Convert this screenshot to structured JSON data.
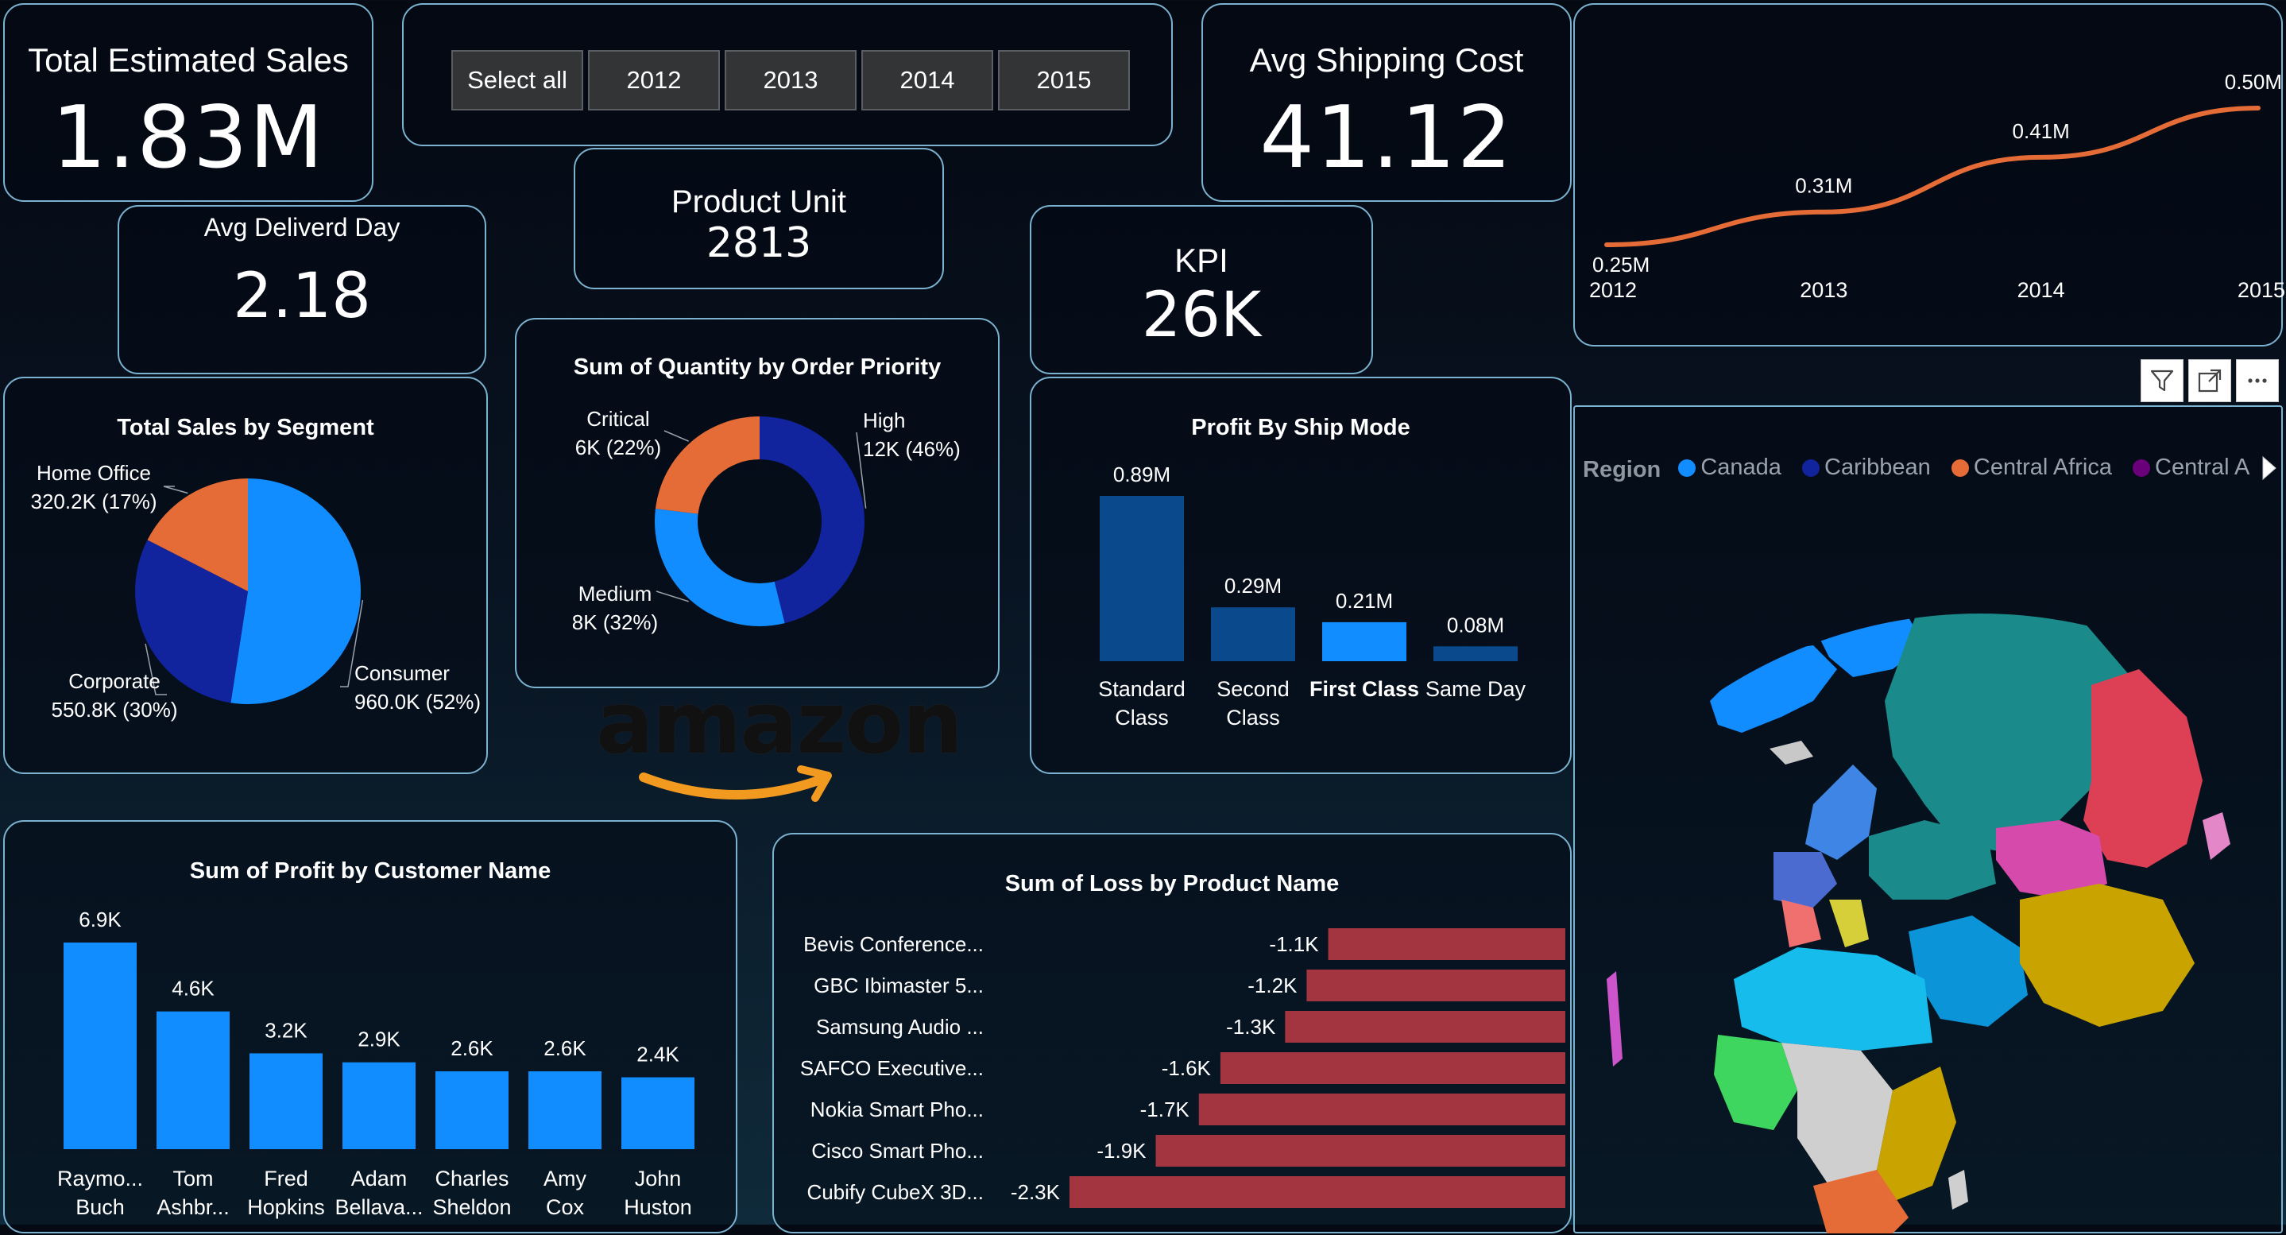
{
  "kpis": {
    "total_sales": {
      "title": "Total Estimated Sales",
      "value": "1.83M"
    },
    "avg_shipping": {
      "title": "Avg Shipping Cost",
      "value": "41.12"
    },
    "avg_delivery": {
      "title": "Avg Deliverd Day",
      "value": "2.18"
    },
    "product_unit": {
      "title": "Product Unit",
      "value": "2813"
    },
    "kpi": {
      "title": "KPI",
      "value": "26K"
    }
  },
  "slicer": {
    "buttons": [
      "Select all",
      "2012",
      "2013",
      "2014",
      "2015"
    ]
  },
  "logo": {
    "text": "amazon"
  },
  "map": {
    "legend_title": "Region",
    "legend_items": [
      {
        "label": "Canada",
        "color": "#118dff"
      },
      {
        "label": "Caribbean",
        "color": "#12239e"
      },
      {
        "label": "Central Africa",
        "color": "#e66c37"
      },
      {
        "label": "Central Am...",
        "color": "#6b007b"
      }
    ]
  },
  "toolbar": {
    "icons": [
      "filter-icon",
      "focus-mode-icon",
      "more-options-icon"
    ]
  },
  "chart_data": [
    {
      "id": "trend",
      "type": "line",
      "title": "",
      "categories": [
        "2012",
        "2013",
        "2014",
        "2015"
      ],
      "values": [
        0.25,
        0.31,
        0.41,
        0.5
      ],
      "labels": [
        "0.25M",
        "0.31M",
        "0.41M",
        "0.50M"
      ],
      "color": "#e66c37"
    },
    {
      "id": "segment",
      "type": "pie",
      "title": "Total Sales by Segment",
      "slices": [
        {
          "name": "Consumer",
          "value": 960.0,
          "label": "960.0K (52%)",
          "color": "#118dff"
        },
        {
          "name": "Corporate",
          "value": 550.8,
          "label": "550.8K (30%)",
          "color": "#12239e"
        },
        {
          "name": "Home Office",
          "value": 320.2,
          "label": "320.2K (17%)",
          "color": "#e66c37"
        }
      ]
    },
    {
      "id": "priority",
      "type": "pie",
      "title": "Sum of Quantity by Order Priority",
      "slices": [
        {
          "name": "High",
          "value": 12,
          "label": "12K (46%)",
          "color": "#12239e"
        },
        {
          "name": "Medium",
          "value": 8,
          "label": "8K (32%)",
          "color": "#118dff"
        },
        {
          "name": "Critical",
          "value": 6,
          "label": "6K (22%)",
          "color": "#e66c37"
        }
      ]
    },
    {
      "id": "shipmode",
      "type": "bar",
      "title": "Profit By Ship Mode",
      "categories": [
        [
          "Standard",
          "Class"
        ],
        [
          "Second",
          "Class"
        ],
        [
          "First Class"
        ],
        [
          "Same Day"
        ]
      ],
      "values": [
        0.89,
        0.29,
        0.21,
        0.08
      ],
      "labels": [
        "0.89M",
        "0.29M",
        "0.21M",
        "0.08M"
      ],
      "highlight_index": 2,
      "colors": {
        "normal": "#0a4a8c",
        "highlight": "#118dff"
      },
      "ylim": [
        0,
        0.89
      ]
    },
    {
      "id": "customer",
      "type": "bar",
      "title": "Sum of Profit by Customer Name",
      "categories": [
        [
          "Raymo...",
          "Buch"
        ],
        [
          "Tom",
          "Ashbr..."
        ],
        [
          "Fred",
          "Hopkins"
        ],
        [
          "Adam",
          "Bellava..."
        ],
        [
          "Charles",
          "Sheldon"
        ],
        [
          "Amy",
          "Cox"
        ],
        [
          "John",
          "Huston"
        ]
      ],
      "values": [
        6.9,
        4.6,
        3.2,
        2.9,
        2.6,
        2.6,
        2.4
      ],
      "labels": [
        "6.9K",
        "4.6K",
        "3.2K",
        "2.9K",
        "2.6K",
        "2.6K",
        "2.4K"
      ],
      "color": "#118dff",
      "ylim": [
        0,
        6.9
      ]
    },
    {
      "id": "loss",
      "type": "bar",
      "orientation": "horizontal",
      "title": "Sum of Loss by Product Name",
      "categories": [
        "Bevis Conference...",
        "GBC Ibimaster 5...",
        "Samsung Audio ...",
        "SAFCO Executive...",
        "Nokia Smart Pho...",
        "Cisco Smart Pho...",
        "Cubify CubeX 3D..."
      ],
      "values": [
        -1.1,
        -1.2,
        -1.3,
        -1.6,
        -1.7,
        -1.9,
        -2.3
      ],
      "labels": [
        "-1.1K",
        "-1.2K",
        "-1.3K",
        "-1.6K",
        "-1.7K",
        "-1.9K",
        "-2.3K"
      ],
      "color": "#a33540",
      "xlim": [
        -2.3,
        0
      ]
    }
  ]
}
